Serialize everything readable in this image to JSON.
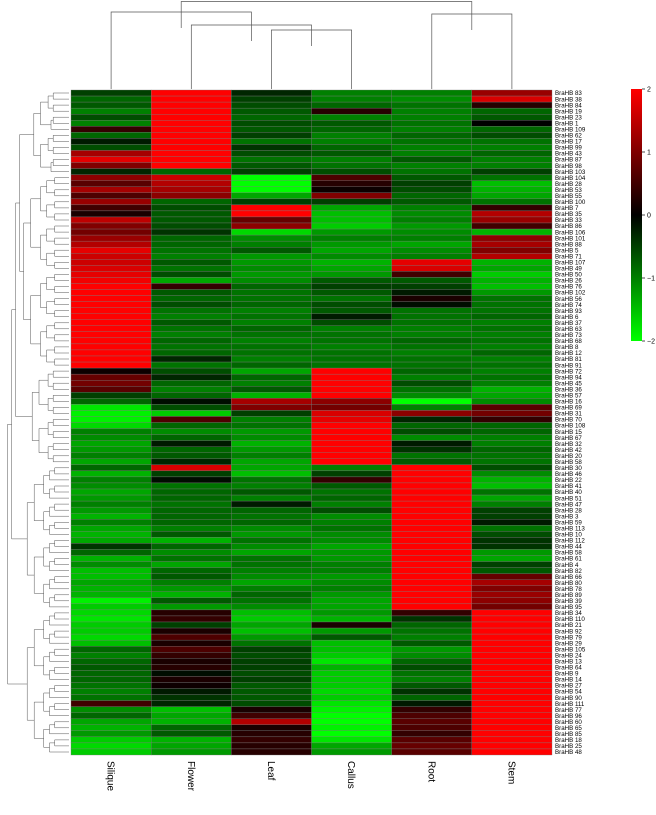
{
  "chart_data": {
    "type": "heatmap",
    "columns": [
      "Silique",
      "Flower",
      "Leaf",
      "Callus",
      "Root",
      "Stem"
    ],
    "rows": [
      "BraHB 83",
      "BraHB 38",
      "BraHB 84",
      "BraHB 19",
      "BraHB 23",
      "BraHB 1",
      "BraHB 109",
      "BraHB 62",
      "BraHB 17",
      "BraHB 99",
      "BraHB 43",
      "BraHB 87",
      "BraHB 98",
      "BraHB 103",
      "BraHB 104",
      "BraHB 28",
      "BraHB 53",
      "BraHB 55",
      "BraHB 100",
      "BraHB 7",
      "BraHB 35",
      "BraHB 33",
      "BraHB 86",
      "BraHB 106",
      "BraHB 101",
      "BraHB 88",
      "BraHB 5",
      "BraHB 71",
      "BraHB 107",
      "BraHB 49",
      "BraHB 50",
      "BraHB 26",
      "BraHB 76",
      "BraHB 102",
      "BraHB 56",
      "BraHB 74",
      "BraHB 93",
      "BraHB 6",
      "BraHB 37",
      "BraHB 63",
      "BraHB 73",
      "BraHB 68",
      "BraHB 8",
      "BraHB 12",
      "BraHB 81",
      "BraHB 91",
      "BraHB 72",
      "BraHB 94",
      "BraHB 45",
      "BraHB 36",
      "BraHB 57",
      "BraHB 16",
      "BraHB 69",
      "BraHB 31",
      "BraHB 70",
      "BraHB 108",
      "BraHB 15",
      "BraHB 67",
      "BraHB 32",
      "BraHB 42",
      "BraHB 20",
      "BraHB 58",
      "BraHB 30",
      "BraHB 46",
      "BraHB 22",
      "BraHB 41",
      "BraHB 40",
      "BraHB 51",
      "BraHB 47",
      "BraHB 28",
      "BraHB 3",
      "BraHB 59",
      "BraHB 113",
      "BraHB 10",
      "BraHB 112",
      "BraHB 44",
      "BraHB 58",
      "BraHB 61",
      "BraHB 4",
      "BraHB 82",
      "BraHB 66",
      "BraHB 80",
      "BraHB 78",
      "BraHB 89",
      "BraHB 39",
      "BraHB 95",
      "BraHB 34",
      "BraHB 110",
      "BraHB 21",
      "BraHB 92",
      "BraHB 79",
      "BraHB 29",
      "BraHB 105",
      "BraHB 24",
      "BraHB 13",
      "BraHB 64",
      "BraHB 9",
      "BraHB 14",
      "BraHB 27",
      "BraHB 54",
      "BraHB 90",
      "BraHB 111",
      "BraHB 77",
      "BraHB 96",
      "BraHB 60",
      "BraHB 65",
      "BraHB 85",
      "BraHB 18",
      "BraHB 25",
      "BraHB 48"
    ],
    "values": [
      [
        -0.5,
        2,
        -0.3,
        -1,
        -1,
        1.2
      ],
      [
        -0.8,
        2,
        -0.5,
        -1,
        -1.1,
        1.7
      ],
      [
        -0.7,
        2,
        -0.6,
        -0.8,
        -0.9,
        0.3
      ],
      [
        -1,
        2,
        -0.7,
        0.3,
        -1,
        -0.8
      ],
      [
        -0.6,
        2,
        -0.8,
        -1,
        -1,
        -0.7
      ],
      [
        -1,
        2,
        -0.6,
        -0.7,
        -0.9,
        0
      ],
      [
        0.4,
        2,
        -0.7,
        -0.8,
        -1,
        -0.8
      ],
      [
        -0.8,
        2,
        -0.5,
        -1,
        -0.8,
        -0.6
      ],
      [
        -0.2,
        2,
        -0.9,
        -1,
        -0.9,
        -0.9
      ],
      [
        -0.6,
        2,
        -0.4,
        -0.8,
        -1,
        -1
      ],
      [
        1.3,
        2,
        -0.6,
        -0.7,
        -1,
        -0.8
      ],
      [
        1.8,
        2,
        -0.9,
        -1,
        -0.7,
        -1
      ],
      [
        1,
        2,
        -0.7,
        -0.9,
        -1,
        -1
      ],
      [
        -0.3,
        -0.8,
        -0.5,
        -0.6,
        -0.9,
        -0.5
      ],
      [
        1.1,
        1.6,
        -2,
        0.6,
        -0.7,
        -0.9
      ],
      [
        0.7,
        1.4,
        -2,
        0.3,
        -0.5,
        -1.5
      ],
      [
        1.3,
        1.3,
        -2,
        0.1,
        -0.6,
        -1.4
      ],
      [
        0.6,
        1.1,
        -1.3,
        1,
        -0.8,
        -1.3
      ],
      [
        1.2,
        -0.8,
        -0.5,
        -0.5,
        -0.7,
        -0.9
      ],
      [
        0.5,
        -0.6,
        2,
        -1.3,
        -1,
        0.4
      ],
      [
        0.2,
        -0.7,
        2,
        -1.5,
        -1.1,
        1.4
      ],
      [
        1.5,
        -0.7,
        0.8,
        -1.5,
        -1,
        1.2
      ],
      [
        1,
        -0.6,
        1.1,
        -1.6,
        -1.2,
        0.5
      ],
      [
        0.9,
        -0.4,
        -1.7,
        -1.2,
        -1.1,
        -1.4
      ],
      [
        1.2,
        -0.8,
        -1.1,
        -1,
        -1,
        1.1
      ],
      [
        1.4,
        -0.8,
        -1,
        -1.2,
        -1.3,
        1.3
      ],
      [
        1.8,
        -0.9,
        -0.7,
        -1.3,
        -1.1,
        1
      ],
      [
        1.6,
        -1,
        -1.2,
        -1.1,
        -1,
        1.4
      ],
      [
        1.6,
        -0.7,
        -1.2,
        -1.4,
        1.8,
        -1.4
      ],
      [
        1.7,
        -0.9,
        -1.1,
        -1.3,
        1.7,
        -1.3
      ],
      [
        1.8,
        -0.6,
        -1.2,
        -1.2,
        0.5,
        -1.6
      ],
      [
        1.9,
        -1.3,
        -1.1,
        -0.7,
        -0.7,
        -1.4
      ],
      [
        2,
        0.4,
        -0.8,
        -0.5,
        -0.5,
        -1.5
      ],
      [
        2,
        -0.7,
        -0.9,
        -0.7,
        -0.2,
        -1.2
      ],
      [
        2,
        -0.8,
        -0.9,
        -0.9,
        0.2,
        -0.9
      ],
      [
        2,
        -0.6,
        -0.8,
        -0.6,
        -0.1,
        -0.9
      ],
      [
        2,
        -0.9,
        -1,
        -0.7,
        -0.9,
        -0.9
      ],
      [
        2,
        -1,
        -0.9,
        -0.2,
        -0.9,
        -0.8
      ],
      [
        2,
        -0.7,
        -1,
        -0.6,
        -0.9,
        -1
      ],
      [
        2,
        -0.9,
        -0.8,
        -1,
        -1,
        -0.9
      ],
      [
        2,
        -1,
        -0.9,
        -0.9,
        -1,
        -1
      ],
      [
        2,
        -0.8,
        -1,
        -0.9,
        -0.8,
        -0.9
      ],
      [
        2,
        -0.9,
        -0.9,
        -1,
        -0.9,
        -1
      ],
      [
        2,
        -0.8,
        -0.9,
        -0.9,
        -1,
        -0.8
      ],
      [
        2,
        -0.3,
        -1,
        -0.9,
        -0.9,
        -1
      ],
      [
        2,
        -0.9,
        -0.8,
        -0.9,
        -0.9,
        -0.9
      ],
      [
        0.1,
        -0.6,
        -1.3,
        2,
        -0.8,
        -1
      ],
      [
        0.8,
        -0.3,
        -0.8,
        2,
        -1,
        -0.9
      ],
      [
        0.9,
        -0.8,
        -1,
        2,
        -0.6,
        -1
      ],
      [
        0.7,
        -1,
        -0.7,
        2,
        -0.9,
        -1.4
      ],
      [
        -0.5,
        -0.8,
        -1.4,
        2,
        -1.1,
        -1.3
      ],
      [
        -0.8,
        -0.1,
        1.3,
        1.1,
        -2,
        -1.1
      ],
      [
        -1.8,
        -0.6,
        1,
        0.9,
        -1,
        0.7
      ],
      [
        -1.9,
        -1.6,
        -0.5,
        1.7,
        1.1,
        0.9
      ],
      [
        -1.9,
        0.6,
        -1,
        1.8,
        -0.3,
        0.4
      ],
      [
        -1.7,
        -0.8,
        -0.9,
        2,
        -0.8,
        -0.8
      ],
      [
        -1,
        -1.1,
        -1.2,
        2,
        -0.6,
        -0.8
      ],
      [
        -1.1,
        -0.8,
        -1.1,
        2,
        -1.1,
        -1
      ],
      [
        -1.3,
        -0.2,
        -1.4,
        2,
        -0.2,
        -1
      ],
      [
        -1.2,
        -0.8,
        -1.2,
        2,
        -0.4,
        -0.8
      ],
      [
        -1,
        -0.7,
        -1,
        2,
        -0.9,
        -0.9
      ],
      [
        -1.3,
        -0.3,
        -1.3,
        2,
        -0.7,
        -0.9
      ],
      [
        -0.8,
        1.7,
        -1.3,
        -1,
        2,
        -0.6
      ],
      [
        -1.4,
        -0.5,
        -1.5,
        -0.5,
        2,
        -1.1
      ],
      [
        -1,
        -0.1,
        -0.9,
        0.4,
        2,
        -1.4
      ],
      [
        -1.1,
        -0.9,
        -1,
        -0.7,
        2,
        -1.5
      ],
      [
        -1.3,
        -0.8,
        -0.7,
        -0.9,
        2,
        -0.9
      ],
      [
        -1.2,
        -0.8,
        -1,
        -0.8,
        2,
        -1.3
      ],
      [
        -1,
        -0.9,
        -0.2,
        -1,
        2,
        -1
      ],
      [
        -1.2,
        -0.8,
        -0.8,
        -0.6,
        2,
        -0.5
      ],
      [
        -1.4,
        -0.8,
        -0.9,
        -1.1,
        2,
        -0.5
      ],
      [
        -1,
        -0.8,
        -0.8,
        -1,
        2,
        -0.2
      ],
      [
        -1.3,
        -1,
        -1.1,
        -0.9,
        2,
        -0.9
      ],
      [
        -1.4,
        -0.7,
        -1.2,
        -1.1,
        2,
        -0.6
      ],
      [
        -1.3,
        -1.4,
        -0.9,
        -1.1,
        2,
        -0.4
      ],
      [
        -0.4,
        -0.8,
        -1.1,
        -1.3,
        2,
        -0.4
      ],
      [
        -0.8,
        -1.1,
        -1.3,
        -1.2,
        2,
        -1.2
      ],
      [
        -1.4,
        -0.9,
        -0.9,
        -1.2,
        2,
        -1.3
      ],
      [
        -1.1,
        -1.3,
        -0.9,
        -1,
        2,
        -0.5
      ],
      [
        -1.5,
        -0.8,
        -1,
        -1,
        2,
        -0.7
      ],
      [
        -1.5,
        -0.7,
        -1.1,
        -1.2,
        2,
        0.8
      ],
      [
        -1.3,
        -1,
        -1.3,
        -1.1,
        2,
        1.3
      ],
      [
        -1.4,
        -1.2,
        -1,
        -1,
        2,
        1
      ],
      [
        -1.4,
        -1.4,
        -0.8,
        -1.2,
        2,
        1.2
      ],
      [
        -1.9,
        -0.7,
        -0.9,
        -1.3,
        2,
        1.1
      ],
      [
        -1.6,
        -1.2,
        -1.1,
        -1.3,
        2,
        0.9
      ],
      [
        -1.7,
        0.3,
        -1.5,
        -1.2,
        0.4,
        2
      ],
      [
        -1.8,
        0.4,
        -1.6,
        -1.4,
        -0.4,
        2
      ],
      [
        -1.6,
        -0.5,
        -1.3,
        0.2,
        -0.8,
        2
      ],
      [
        -1.6,
        0.2,
        -1.5,
        -1.2,
        -0.9,
        2
      ],
      [
        -1.7,
        0.6,
        -1.2,
        -0.7,
        -1,
        2
      ],
      [
        -1.5,
        0.2,
        -0.9,
        -1.5,
        -0.7,
        2
      ],
      [
        -0.8,
        0.6,
        -0.5,
        -1.5,
        -1.2,
        2
      ],
      [
        -1,
        0.4,
        -0.6,
        -1.6,
        -1.1,
        2
      ],
      [
        -0.8,
        0.2,
        -0.5,
        -1.8,
        -0.8,
        2
      ],
      [
        -0.7,
        0.3,
        -0.5,
        -1.4,
        -0.6,
        2
      ],
      [
        -0.8,
        -0.1,
        -0.6,
        -1.6,
        -0.9,
        2
      ],
      [
        -0.8,
        0.2,
        -0.5,
        -1.6,
        -1,
        2
      ],
      [
        -0.9,
        0.1,
        -0.7,
        -1.6,
        -0.7,
        2
      ],
      [
        -1,
        -0.2,
        -0.7,
        -1.7,
        -0.4,
        2
      ],
      [
        -0.9,
        -0.4,
        -0.7,
        -1.6,
        -0.8,
        2
      ],
      [
        0.5,
        -0.3,
        -0.6,
        -1.8,
        -0.2,
        2
      ],
      [
        -1.1,
        -1.5,
        0.2,
        -1.9,
        0.4,
        2
      ],
      [
        -0.8,
        -1.3,
        0.5,
        -2,
        0.6,
        2
      ],
      [
        -1.3,
        -1.4,
        1.4,
        -2,
        0.7,
        2
      ],
      [
        -1.4,
        -0.8,
        0.2,
        -1.9,
        0.6,
        2
      ],
      [
        -1.2,
        -0.7,
        0.3,
        -2,
        0.4,
        2
      ],
      [
        -1.6,
        -1.4,
        0.4,
        -1.8,
        0.7,
        2
      ],
      [
        -1.7,
        -1.3,
        0.3,
        -1.3,
        0.8,
        2
      ],
      [
        -1.6,
        -1.2,
        0.3,
        -1.2,
        0.7,
        2
      ]
    ],
    "legend": {
      "ticks": [
        2,
        1,
        0,
        -1,
        -2
      ],
      "tick_labels": [
        "2",
        "1",
        "0",
        "−1",
        "−2"
      ],
      "colors": {
        "high": "#ff0000",
        "mid": "#000000",
        "low": "#00ff00"
      }
    }
  }
}
